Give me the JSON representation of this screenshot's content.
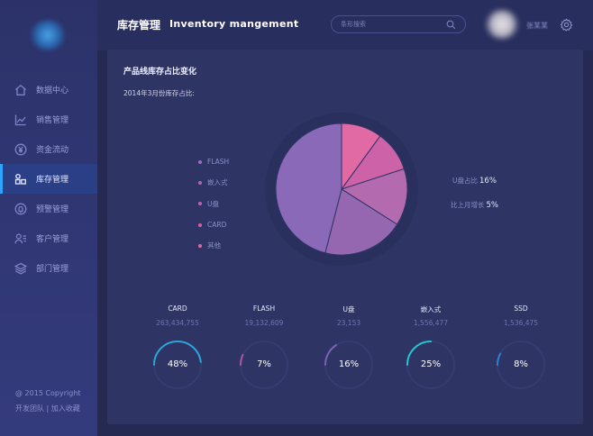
{
  "header": {
    "title_cn": "库存管理",
    "title_en": "Inventory  mangement",
    "search_placeholder": "条形搜索",
    "username": "张某某"
  },
  "sidebar": {
    "items": [
      {
        "label": "数据中心",
        "icon": "home-icon",
        "active": false
      },
      {
        "label": "销售管理",
        "icon": "line-chart-icon",
        "active": false
      },
      {
        "label": "资金流动",
        "icon": "yen-icon",
        "active": false
      },
      {
        "label": "库存管理",
        "icon": "boxes-icon",
        "active": true
      },
      {
        "label": "预警管理",
        "icon": "bell-icon",
        "active": false
      },
      {
        "label": "客户管理",
        "icon": "user-list-icon",
        "active": false
      },
      {
        "label": "部门管理",
        "icon": "layers-icon",
        "active": false
      }
    ],
    "footer_copyright": "@  2015  Copyright",
    "footer_links": "开发团队 | 加入收藏"
  },
  "main": {
    "card_title": "产品线库存占比变化",
    "subtitle": "2014年3月份库存占比:",
    "stats": {
      "share_label": "U盘占比",
      "share_value": "16%",
      "growth_label": "比上月增长",
      "growth_value": "5%"
    },
    "legend": [
      {
        "label": "FLASH",
        "color": "#9a6fc4"
      },
      {
        "label": "嵌入式",
        "color": "#b066bb"
      },
      {
        "label": "U盘",
        "color": "#c65fb1"
      },
      {
        "label": "CARD",
        "color": "#d85ea6"
      },
      {
        "label": "其他",
        "color": "#e2679f"
      }
    ],
    "gauges": [
      {
        "label": "CARD",
        "value": "263,434,755",
        "percent": "48%",
        "fraction": 0.48,
        "color": "#2aa6d9"
      },
      {
        "label": "FLASH",
        "value": "19,132,609",
        "percent": "7%",
        "fraction": 0.07,
        "color": "#b0579f"
      },
      {
        "label": "U盘",
        "value": "23,153",
        "percent": "16%",
        "fraction": 0.16,
        "color": "#7a62b8"
      },
      {
        "label": "嵌入式",
        "value": "1,556,477",
        "percent": "25%",
        "fraction": 0.25,
        "color": "#22c6d2"
      },
      {
        "label": "SSD",
        "value": "1,536,475",
        "percent": "8%",
        "fraction": 0.08,
        "color": "#2b80d6"
      }
    ]
  },
  "chart_data": {
    "type": "pie",
    "title": "",
    "slices": [
      {
        "value": 10,
        "color": "#e16aa4"
      },
      {
        "value": 10,
        "color": "#cd62a8"
      },
      {
        "value": 14,
        "color": "#b46aae"
      },
      {
        "value": 20,
        "color": "#9467b0"
      },
      {
        "value": 46,
        "color": "#8a6ab8"
      }
    ]
  }
}
